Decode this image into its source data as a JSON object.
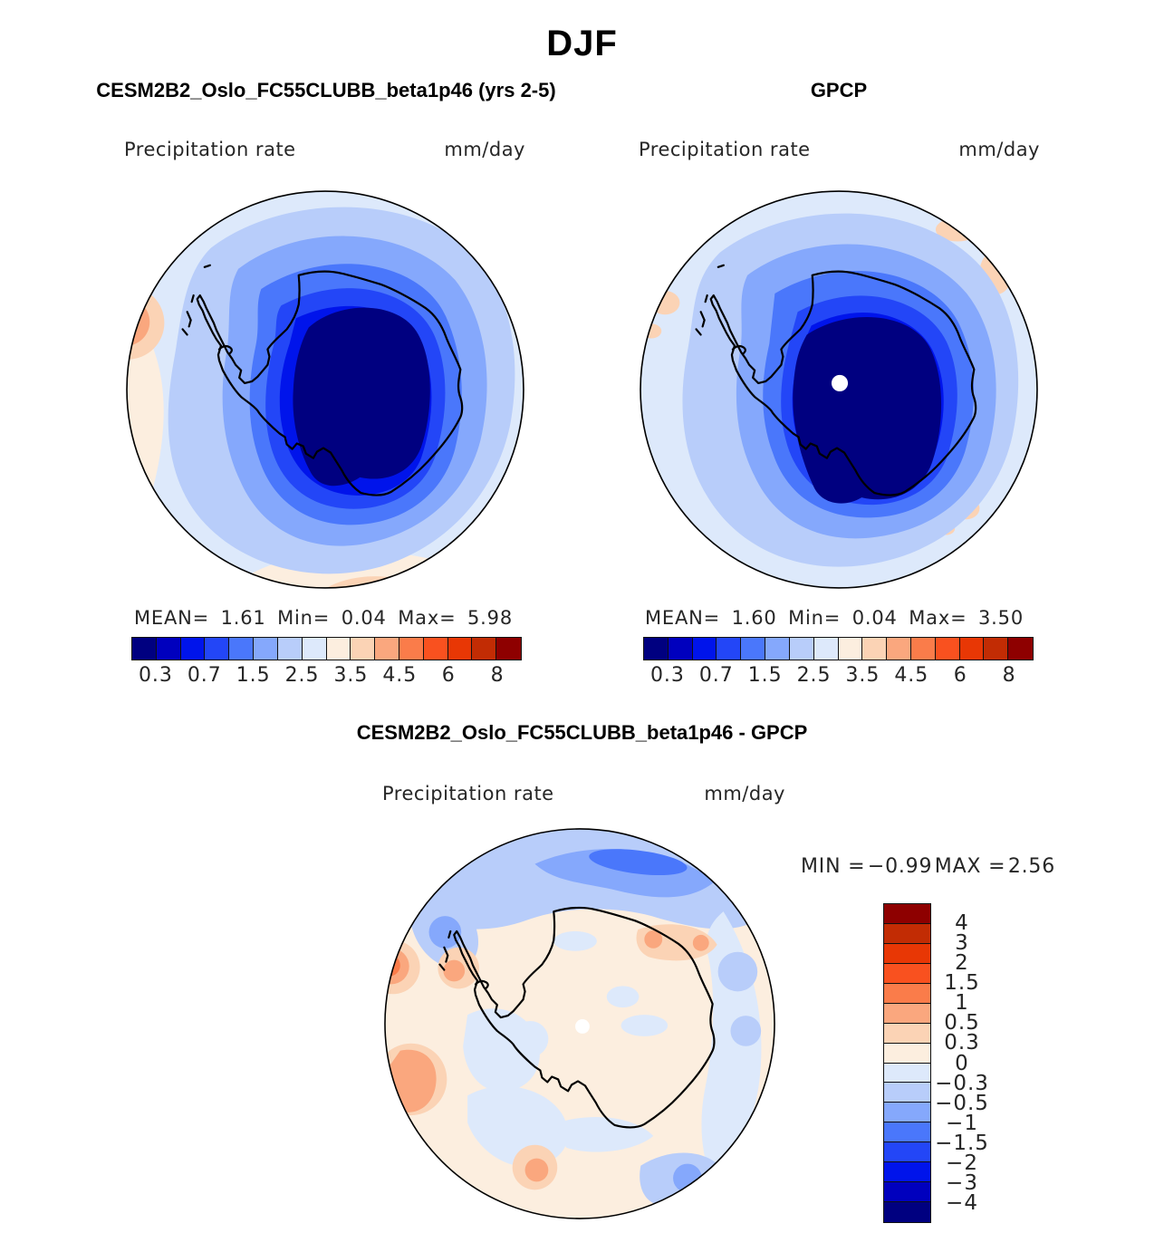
{
  "figure_title": "DJF",
  "panels": {
    "model": {
      "title": "CESM2B2_Oslo_FC55CLUBB_beta1p46 (yrs 2-5)",
      "field_label": "Precipitation rate",
      "units_label": "mm/day",
      "stats": {
        "mean_label": "MEAN=",
        "mean": "1.61",
        "min_label": "Min=",
        "min": "0.04",
        "max_label": "Max=",
        "max": "5.98"
      }
    },
    "obs": {
      "title": "GPCP",
      "field_label": "Precipitation rate",
      "units_label": "mm/day",
      "stats": {
        "mean_label": "MEAN=",
        "mean": "1.60",
        "min_label": "Min=",
        "min": "0.04",
        "max_label": "Max=",
        "max": "3.50"
      }
    },
    "diff": {
      "title": "CESM2B2_Oslo_FC55CLUBB_beta1p46 - GPCP",
      "field_label": "Precipitation rate",
      "units_label": "mm/day",
      "stats": {
        "min_label": "MIN =",
        "min": "−0.99",
        "max_label": "MAX =",
        "max": "2.56"
      }
    }
  },
  "colorbar": {
    "palette_low_to_high": [
      "#000080",
      "#0000BE",
      "#0014EB",
      "#2346F7",
      "#4A77FB",
      "#85A8FC",
      "#B8CDFA",
      "#DDE9FB",
      "#FCEEDF",
      "#FBD3B5",
      "#FAA77E",
      "#FA7C4A",
      "#F9511F",
      "#E83705",
      "#C22C04",
      "#8E0000"
    ],
    "tick_labels": [
      "0.3",
      "0.7",
      "1.5",
      "2.5",
      "3.5",
      "4.5",
      "6",
      "8"
    ],
    "tick_positions_16ths": [
      1,
      3,
      5,
      7,
      9,
      11,
      13,
      15
    ]
  },
  "diff_colorbar": {
    "tick_labels_top_to_bottom": [
      "4",
      "3",
      "2",
      "1.5",
      "1",
      "0.5",
      "0.3",
      "0",
      "−0.3",
      "−0.5",
      "−1",
      "−1.5",
      "−2",
      "−3",
      "−4"
    ]
  },
  "chart_data": [
    {
      "type": "heatmap",
      "subtype": "filled-contour-map",
      "projection": "south-polar-stereographic",
      "season": "DJF",
      "title": "CESM2B2_Oslo_FC55CLUBB_beta1p46 (yrs 2-5)",
      "variable": "Precipitation rate",
      "units": "mm/day",
      "stats": {
        "mean": 1.61,
        "min": 0.04,
        "max": 5.98
      },
      "contour_levels": [
        0.3,
        0.5,
        0.7,
        1,
        1.5,
        2,
        2.5,
        3,
        3.5,
        4,
        4.5,
        5,
        6,
        7,
        8
      ],
      "labeled_levels": [
        0.3,
        0.7,
        1.5,
        2.5,
        3.5,
        4.5,
        6,
        8
      ],
      "legend_position": "below"
    },
    {
      "type": "heatmap",
      "subtype": "filled-contour-map",
      "projection": "south-polar-stereographic",
      "season": "DJF",
      "title": "GPCP",
      "variable": "Precipitation rate",
      "units": "mm/day",
      "stats": {
        "mean": 1.6,
        "min": 0.04,
        "max": 3.5
      },
      "contour_levels": [
        0.3,
        0.5,
        0.7,
        1,
        1.5,
        2,
        2.5,
        3,
        3.5,
        4,
        4.5,
        5,
        6,
        7,
        8
      ],
      "labeled_levels": [
        0.3,
        0.7,
        1.5,
        2.5,
        3.5,
        4.5,
        6,
        8
      ],
      "legend_position": "below"
    },
    {
      "type": "heatmap",
      "subtype": "filled-contour-map-difference",
      "projection": "south-polar-stereographic",
      "season": "DJF",
      "title": "CESM2B2_Oslo_FC55CLUBB_beta1p46 - GPCP",
      "variable": "Precipitation rate",
      "units": "mm/day",
      "stats": {
        "min": -0.99,
        "max": 2.56
      },
      "contour_levels": [
        -4,
        -3,
        -2,
        -1.5,
        -1,
        -0.5,
        -0.3,
        0,
        0.3,
        0.5,
        1,
        1.5,
        2,
        3,
        4
      ],
      "labeled_levels": [
        -4,
        -3,
        -2,
        -1.5,
        -1,
        -0.5,
        -0.3,
        0,
        0.3,
        0.5,
        1,
        1.5,
        2,
        3,
        4
      ],
      "legend_position": "right"
    }
  ]
}
